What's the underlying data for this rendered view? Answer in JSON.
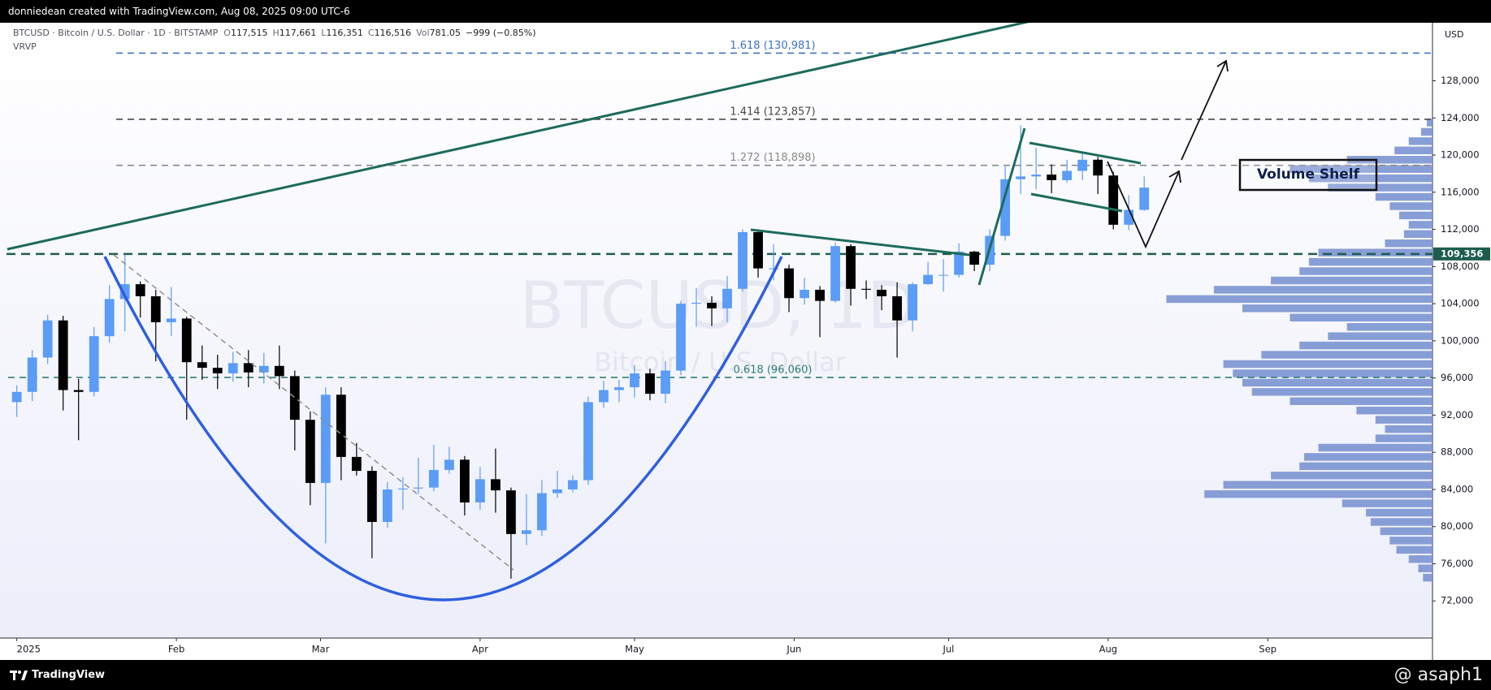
{
  "header": {
    "text": "donniedean created with TradingView.com, Aug 08, 2025 09:00 UTC-6"
  },
  "footer": {
    "logo": "TradingView",
    "credit": "@ asaph1"
  },
  "chart_data": {
    "type": "candlestick",
    "legend": {
      "symbol": "BTCUSD · Bitcoin / U.S. Dollar · 1D · BITSTAMP",
      "o_label": "O",
      "o": "117,515",
      "h_label": "H",
      "h": "117,661",
      "l_label": "L",
      "l": "116,351",
      "c_label": "C",
      "c": "116,516",
      "vol_label": "Vol",
      "vol": "781.05",
      "change": "−999 (−0.85%)",
      "indicator": "VRVP"
    },
    "currency": "USD",
    "watermark": {
      "symbol": "BTCUSD, 1D",
      "name": "Bitcoin / U.S. Dollar"
    },
    "up_color": "#5b9cf6",
    "down_color": "#000000",
    "x": [
      0,
      3,
      6,
      9,
      12,
      15,
      18,
      21,
      24,
      27,
      30,
      33,
      36,
      39,
      42,
      45,
      48,
      51,
      54,
      57,
      60,
      63,
      66,
      69,
      72,
      75,
      78,
      81,
      84,
      87,
      90,
      93,
      96,
      99,
      102,
      105,
      108,
      111,
      114,
      117,
      120,
      123,
      126,
      129,
      132,
      135,
      138,
      141,
      144,
      147,
      150,
      153,
      156,
      159,
      162,
      165,
      168,
      171,
      174,
      177,
      180,
      183,
      186,
      189,
      192,
      195,
      198,
      201,
      204,
      207,
      210,
      213,
      216,
      219
    ],
    "open": [
      93400,
      94500,
      98200,
      102200,
      94700,
      94500,
      100500,
      104500,
      106100,
      104800,
      102000,
      102400,
      97700,
      97100,
      96500,
      97600,
      96600,
      97300,
      96200,
      91500,
      84700,
      94200,
      87500,
      86000,
      80500,
      84000,
      84100,
      84200,
      86100,
      87200,
      82600,
      85100,
      83900,
      79200,
      79600,
      83600,
      84000,
      85000,
      93400,
      94700,
      95000,
      96500,
      94300,
      96800,
      104000,
      104100,
      103500,
      105600,
      111700,
      107800,
      107800,
      104600,
      105500,
      104300,
      110200,
      105600,
      105500,
      104800,
      102200,
      106100,
      107100,
      107100,
      109600,
      108200,
      111300,
      117400,
      117700,
      117900,
      117300,
      118300,
      119500,
      117800,
      112500,
      114100
    ],
    "high": [
      95200,
      99000,
      102800,
      102700,
      95900,
      101500,
      106000,
      109300,
      106400,
      105500,
      105800,
      102600,
      99500,
      98500,
      98800,
      99000,
      98700,
      99500,
      96800,
      92400,
      95000,
      95000,
      89000,
      86500,
      84800,
      85300,
      87400,
      88800,
      88600,
      87600,
      86400,
      88400,
      84200,
      83500,
      85000,
      86000,
      85500,
      94000,
      95700,
      95800,
      97400,
      97000,
      97800,
      104300,
      105700,
      104800,
      107000,
      112000,
      111800,
      110400,
      108200,
      106800,
      105900,
      110600,
      110400,
      106500,
      106000,
      106300,
      106300,
      108500,
      108800,
      110500,
      109700,
      112000,
      118800,
      123200,
      120800,
      119000,
      119500,
      120200,
      119800,
      118200,
      115700,
      117700
    ],
    "low": [
      91800,
      93500,
      97500,
      92500,
      89300,
      94000,
      99800,
      101000,
      102500,
      97800,
      100500,
      91500,
      95800,
      94800,
      95600,
      95000,
      95400,
      94800,
      88200,
      82300,
      78200,
      85000,
      85500,
      76600,
      79900,
      81800,
      83500,
      83800,
      85700,
      81200,
      81800,
      81500,
      74400,
      78000,
      79000,
      83100,
      83700,
      84500,
      92800,
      93400,
      93900,
      93600,
      93300,
      96300,
      101500,
      101600,
      102000,
      105300,
      106800,
      106500,
      103100,
      103900,
      100400,
      104100,
      103800,
      104500,
      103300,
      98200,
      101000,
      106000,
      105300,
      106800,
      107500,
      107500,
      110800,
      115800,
      116300,
      115900,
      117000,
      117300,
      115800,
      112000,
      111900,
      114000
    ],
    "close": [
      94500,
      98200,
      102200,
      94700,
      94500,
      100500,
      104500,
      106100,
      104800,
      102000,
      102400,
      97700,
      97100,
      96500,
      97600,
      96600,
      97300,
      96200,
      91500,
      84700,
      94200,
      87500,
      86000,
      80500,
      84000,
      84100,
      84200,
      86100,
      87200,
      82600,
      85100,
      83900,
      79200,
      79600,
      83600,
      84000,
      85000,
      93400,
      94700,
      95000,
      96500,
      94300,
      96800,
      104000,
      104100,
      103500,
      105600,
      111700,
      107800,
      107800,
      104600,
      105500,
      104300,
      110200,
      105600,
      105500,
      104800,
      102200,
      106100,
      107100,
      107100,
      109600,
      108200,
      111300,
      117400,
      117700,
      117900,
      117300,
      118300,
      119500,
      117800,
      112500,
      114100,
      116500
    ],
    "xlim": [
      -2,
      275
    ],
    "xticks": [
      {
        "value": 0,
        "label": "2025"
      },
      {
        "value": 31,
        "label": "Feb"
      },
      {
        "value": 59,
        "label": "Mar"
      },
      {
        "value": 90,
        "label": "Apr"
      },
      {
        "value": 120,
        "label": "May"
      },
      {
        "value": 151,
        "label": "Jun"
      },
      {
        "value": 181,
        "label": "Jul"
      },
      {
        "value": 212,
        "label": "Aug"
      },
      {
        "value": 243,
        "label": "Sep"
      }
    ],
    "ylim": [
      68000,
      134250
    ],
    "yticks": [
      {
        "value": 72000,
        "label": "72,000"
      },
      {
        "value": 76000,
        "label": "76,000"
      },
      {
        "value": 80000,
        "label": "80,000"
      },
      {
        "value": 84000,
        "label": "84,000"
      },
      {
        "value": 88000,
        "label": "88,000"
      },
      {
        "value": 92000,
        "label": "92,000"
      },
      {
        "value": 96000,
        "label": "96,000"
      },
      {
        "value": 100000,
        "label": "100,000"
      },
      {
        "value": 104000,
        "label": "104,000"
      },
      {
        "value": 108000,
        "label": "108,000"
      },
      {
        "value": 112000,
        "label": "112,000"
      },
      {
        "value": 116000,
        "label": "116,000"
      },
      {
        "value": 120000,
        "label": "120,000"
      },
      {
        "value": 124000,
        "label": "124,000"
      },
      {
        "value": 128000,
        "label": "128,000"
      }
    ],
    "fib_levels": [
      {
        "value": 130981,
        "label": "1.618 (130,981)",
        "color": "#3f73c4"
      },
      {
        "value": 123857,
        "label": "1.414 (123,857)",
        "color": "#4a4a4a"
      },
      {
        "value": 118898,
        "label": "1.272 (118,898)",
        "color": "#8a8a8a"
      },
      {
        "value": 96060,
        "label": "0.618 (96,060)",
        "color": "#2f7f74"
      }
    ],
    "level": {
      "value": 109356,
      "label": "109,356",
      "color": "#1d5c4e"
    },
    "annotation": "Volume Shelf",
    "volume_profile": {
      "color": "#7b93d1",
      "bins": [
        74000,
        75000,
        76000,
        77000,
        78000,
        79000,
        80000,
        81000,
        82000,
        83000,
        84000,
        85000,
        86000,
        87000,
        88000,
        89000,
        90000,
        91000,
        92000,
        93000,
        94000,
        95000,
        96000,
        97000,
        98000,
        99000,
        100000,
        101000,
        102000,
        103000,
        104000,
        105000,
        106000,
        107000,
        108000,
        109000,
        110000,
        111000,
        112000,
        113000,
        114000,
        115000,
        116000,
        117000,
        118000,
        119000,
        120000,
        121000,
        122000,
        123000,
        124000
      ],
      "values": [
        10,
        15,
        25,
        38,
        45,
        55,
        65,
        70,
        95,
        240,
        220,
        170,
        140,
        135,
        120,
        60,
        50,
        60,
        80,
        150,
        190,
        200,
        210,
        220,
        180,
        140,
        110,
        90,
        150,
        200,
        280,
        230,
        170,
        140,
        130,
        120,
        50,
        30,
        25,
        35,
        45,
        60,
        110,
        130,
        150,
        90,
        40,
        25,
        12,
        6
      ]
    }
  }
}
